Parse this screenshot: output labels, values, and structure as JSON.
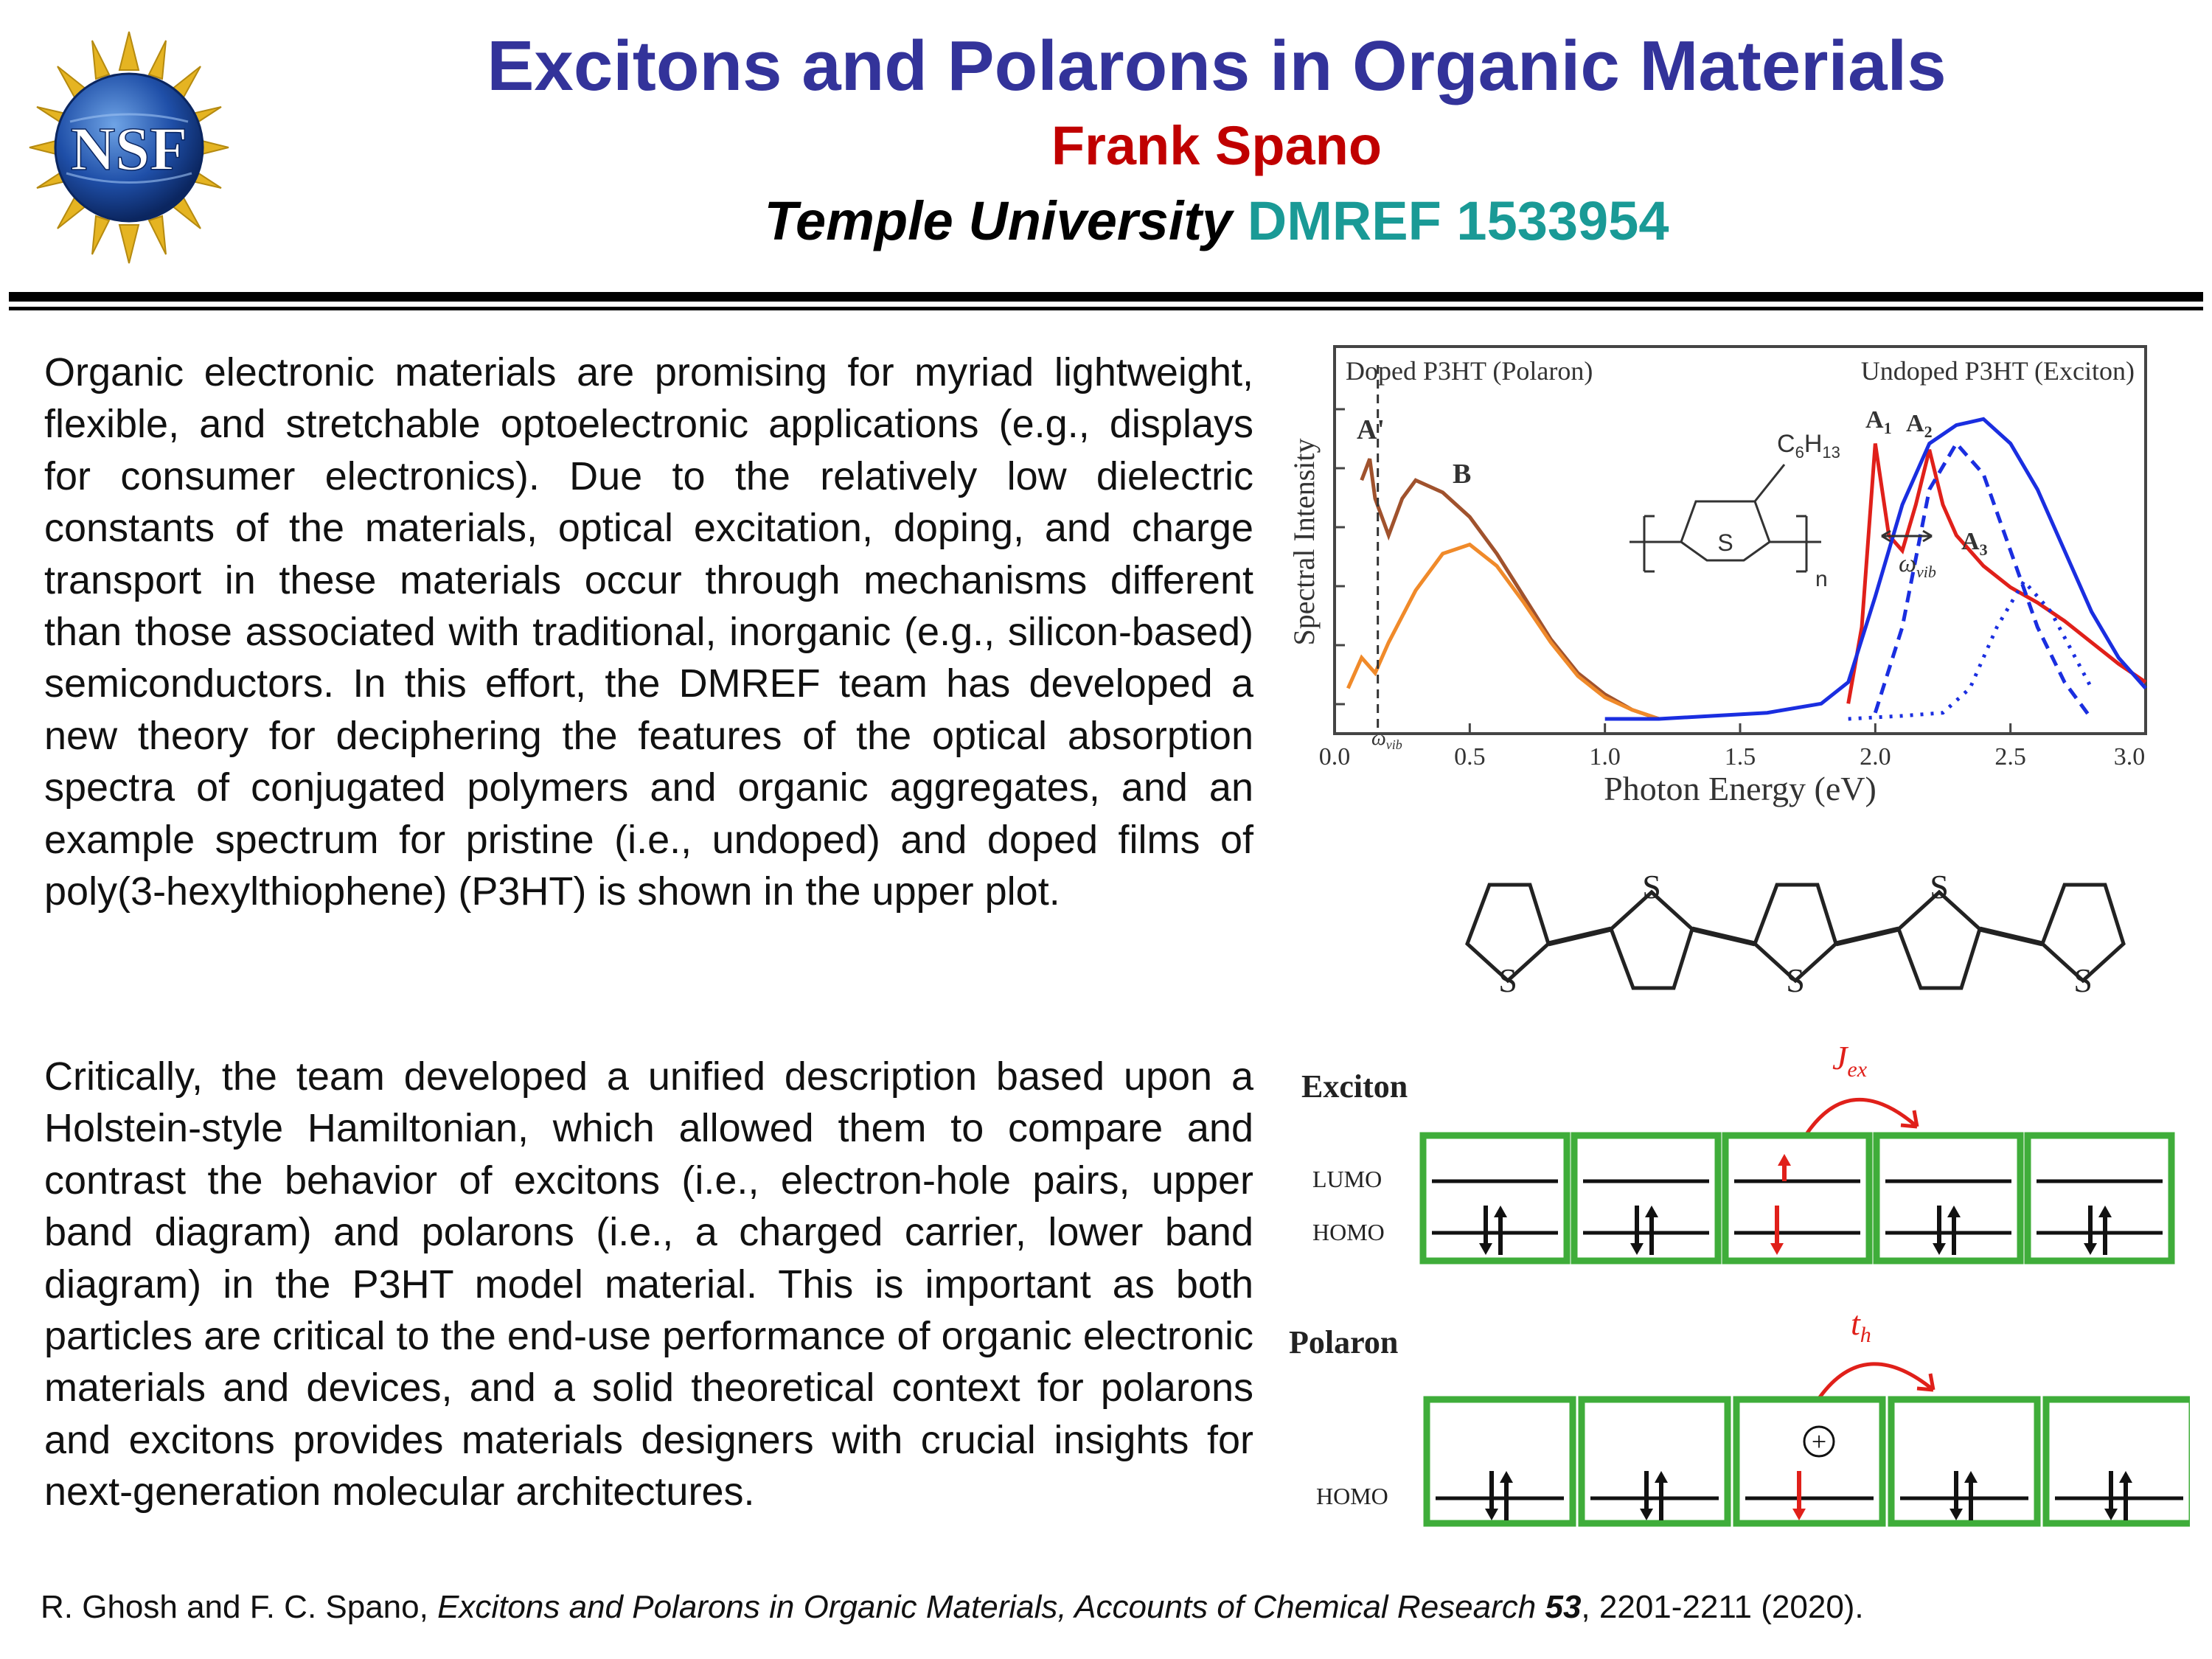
{
  "header": {
    "logo_text": "NSF",
    "title": "Excitons and Polarons in Organic Materials",
    "author": "Frank Spano",
    "institution": "Temple University",
    "grant": "DMREF 1533954"
  },
  "body": {
    "paragraph1": "Organic electronic materials are promising for myriad lightweight, flexible, and stretchable optoelectronic applications (e.g., displays for consumer electronics).  Due to the relatively low dielectric constants of the materials, optical excitation, doping, and charge transport in these materials occur through mechanisms different than those associated with traditional, inorganic (e.g., silicon-based) semiconductors. In this effort, the DMREF team has developed a new theory for deciphering the features of the optical absorption spectra of conjugated polymers and organic aggregates, and an example spectrum for pristine (i.e., undoped) and doped films of poly(3-hexylthiophene) (P3HT) is shown in the upper plot.",
    "paragraph2": "Critically, the team developed a unified description based upon a Holstein-style Hamiltonian, which allowed them to compare and contrast the behavior of excitons (i.e., electron-hole pairs, upper band diagram) and polarons (i.e., a charged carrier, lower band diagram) in the P3HT model material. This is important as both particles are critical to the end-use performance of organic electronic materials and devices, and a solid theoretical context for polarons and excitons provides materials designers with crucial insights for next-generation molecular architectures."
  },
  "citation": {
    "authors": "R. Ghosh and F. C. Spano, ",
    "title": "Excitons and Polarons in Organic Materials, Accounts of Chemical Research ",
    "volume": "53",
    "pages": ", 2201-2211 (2020)."
  },
  "chart_data": {
    "type": "line",
    "xlabel": "Photon Energy (eV)",
    "ylabel": "Spectral Intensity",
    "xlim": [
      0,
      3.0
    ],
    "xticks": [
      "0.0",
      "0.5",
      "1.0",
      "1.5",
      "2.0",
      "2.5",
      "3.0"
    ],
    "labels": {
      "doped": "Doped P3HT (Polaron)",
      "undoped": "Undoped P3HT (Exciton)",
      "peak_A_prime": "A'",
      "peak_B": "B",
      "peak_A1": "A",
      "peak_A1_sub": "1",
      "peak_A2": "A",
      "peak_A2_sub": "2",
      "peak_A3": "A",
      "peak_A3_sub": "3",
      "omega_vib": "ω",
      "omega_vib_sub": "vib",
      "monomer_formula": "C",
      "monomer_formula_6": "6",
      "monomer_formula_h": "H",
      "monomer_formula_13": "13",
      "monomer_s": "S",
      "monomer_n": "n"
    },
    "series": [
      {
        "color": "#a0522d",
        "x": [
          0.1,
          0.13,
          0.15,
          0.2,
          0.25,
          0.3,
          0.4,
          0.5,
          0.6,
          0.7,
          0.8,
          0.9,
          1.0,
          1.1,
          1.2
        ],
        "y": [
          0.78,
          0.85,
          0.72,
          0.6,
          0.72,
          0.78,
          0.74,
          0.66,
          0.54,
          0.4,
          0.26,
          0.15,
          0.08,
          0.03,
          0.0
        ]
      },
      {
        "color": "#f08a2a",
        "x": [
          0.05,
          0.1,
          0.15,
          0.2,
          0.3,
          0.4,
          0.5,
          0.6,
          0.7,
          0.8,
          0.9,
          1.0,
          1.1,
          1.2
        ],
        "y": [
          0.1,
          0.2,
          0.15,
          0.25,
          0.42,
          0.54,
          0.57,
          0.5,
          0.38,
          0.25,
          0.14,
          0.07,
          0.03,
          0.0
        ]
      },
      {
        "color": "#e0201a",
        "x": [
          1.9,
          1.95,
          2.0,
          2.05,
          2.1,
          2.15,
          2.2,
          2.25,
          2.3,
          2.35,
          2.4,
          2.5,
          2.6,
          2.7,
          2.8,
          2.9,
          3.0
        ],
        "y": [
          0.05,
          0.3,
          0.9,
          0.6,
          0.55,
          0.7,
          0.88,
          0.7,
          0.6,
          0.55,
          0.5,
          0.43,
          0.38,
          0.32,
          0.25,
          0.18,
          0.12
        ]
      },
      {
        "color": "#1a2ee0",
        "x": [
          1.0,
          1.2,
          1.4,
          1.6,
          1.8,
          1.9,
          2.0,
          2.1,
          2.2,
          2.3,
          2.4,
          2.5,
          2.6,
          2.7,
          2.8,
          2.9,
          3.0
        ],
        "y": [
          0.0,
          0.0,
          0.01,
          0.02,
          0.05,
          0.12,
          0.4,
          0.7,
          0.9,
          0.96,
          0.98,
          0.9,
          0.75,
          0.55,
          0.35,
          0.2,
          0.1
        ]
      },
      {
        "color": "#1a2ee0",
        "dash": "dashed",
        "x": [
          2.0,
          2.1,
          2.2,
          2.3,
          2.4,
          2.5,
          2.6,
          2.7,
          2.8
        ],
        "y": [
          0.02,
          0.3,
          0.75,
          0.9,
          0.8,
          0.55,
          0.3,
          0.12,
          0.0
        ]
      },
      {
        "color": "#1a2ee0",
        "dash": "dotted",
        "x": [
          1.9,
          2.1,
          2.25,
          2.35,
          2.45,
          2.55,
          2.65,
          2.8
        ],
        "y": [
          0.0,
          0.01,
          0.02,
          0.1,
          0.3,
          0.45,
          0.35,
          0.1
        ]
      }
    ]
  },
  "diagrams": {
    "oligomer_s_labels": [
      "S",
      "S",
      "S",
      "S",
      "S"
    ],
    "exciton": {
      "label": "Exciton",
      "lumo": "LUMO",
      "homo": "HOMO",
      "coupling": "J",
      "coupling_sub": "ex"
    },
    "polaron": {
      "label": "Polaron",
      "homo": "HOMO",
      "coupling": "t",
      "coupling_sub": "h",
      "hole": "+"
    }
  }
}
